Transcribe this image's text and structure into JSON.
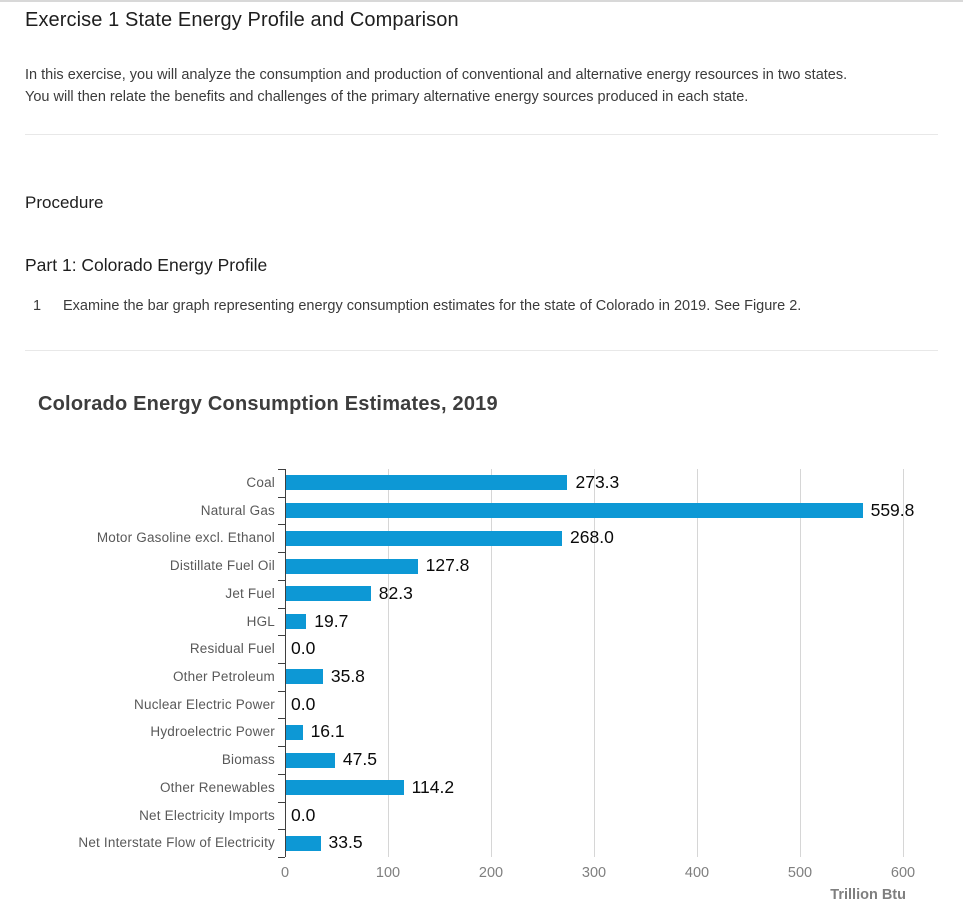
{
  "document": {
    "title": "Exercise 1 State Energy Profile and Comparison",
    "intro_lines": [
      "In this exercise, you will analyze the consumption and production of conventional and alternative energy resources in two states.",
      "You will then relate the benefits and challenges of the primary alternative energy sources produced in each state."
    ],
    "procedure_heading": "Procedure",
    "part_heading": "Part 1: Colorado Energy Profile",
    "step_number": "1",
    "step_text": "Examine the bar graph representing energy consumption estimates for the state of Colorado in 2019. See Figure 2."
  },
  "chart_data": {
    "type": "bar",
    "orientation": "horizontal",
    "title": "Colorado Energy Consumption Estimates, 2019",
    "categories": [
      "Coal",
      "Natural Gas",
      "Motor Gasoline excl. Ethanol",
      "Distillate Fuel Oil",
      "Jet Fuel",
      "HGL",
      "Residual Fuel",
      "Other Petroleum",
      "Nuclear Electric Power",
      "Hydroelectric Power",
      "Biomass",
      "Other Renewables",
      "Net Electricity Imports",
      "Net Interstate Flow of Electricity"
    ],
    "values": [
      273.3,
      559.8,
      268.0,
      127.8,
      82.3,
      19.7,
      0.0,
      35.8,
      0.0,
      16.1,
      47.5,
      114.2,
      0.0,
      33.5
    ],
    "xlabel": "Trillion Btu",
    "xlim": [
      0,
      600
    ],
    "xticks": [
      0,
      100,
      200,
      300,
      400,
      500,
      600
    ],
    "grid": true,
    "legend_position": "none",
    "value_label_decimals": 1,
    "bar_color": "#0d98d5",
    "gridline_color": "#d6d6d6",
    "axis_color": "#3f3f3f",
    "category_label_color": "#595959",
    "tick_label_color": "#7f7f7f"
  }
}
